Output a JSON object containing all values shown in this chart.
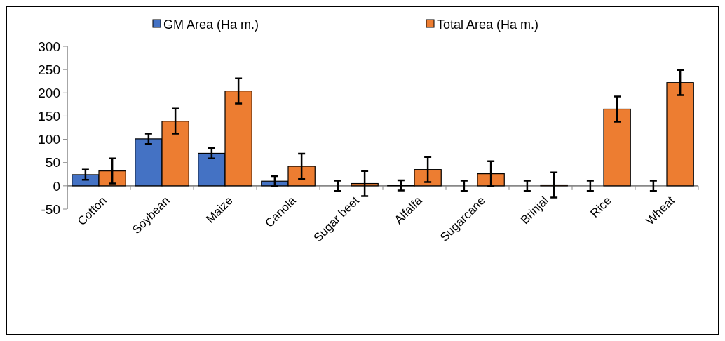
{
  "chart_data": {
    "type": "bar",
    "categories": [
      "Cotton",
      "Soybean",
      "Maize",
      "Canola",
      "Sugar beet",
      "Alfalfa",
      "Sugarcane",
      "Brinjal",
      "Rice",
      "Wheat"
    ],
    "series": [
      {
        "name": "GM Area (Ha m.)",
        "color": "#4472c4",
        "values": [
          24,
          101,
          70,
          10,
          0,
          1,
          0,
          0,
          0,
          0
        ],
        "errors": [
          11,
          11,
          11,
          11,
          11,
          11,
          11,
          11,
          11,
          11
        ]
      },
      {
        "name": "Total Area (Ha m.)",
        "color": "#ed7d31",
        "values": [
          32,
          139,
          204,
          42,
          5,
          35,
          26,
          2,
          165,
          222
        ],
        "errors": [
          27,
          27,
          27,
          27,
          27,
          27,
          27,
          27,
          27,
          27
        ]
      }
    ],
    "ylim": [
      -50,
      300
    ],
    "yticks": [
      -50,
      0,
      50,
      100,
      150,
      200,
      250,
      300
    ],
    "grid": false,
    "legend": "top"
  }
}
